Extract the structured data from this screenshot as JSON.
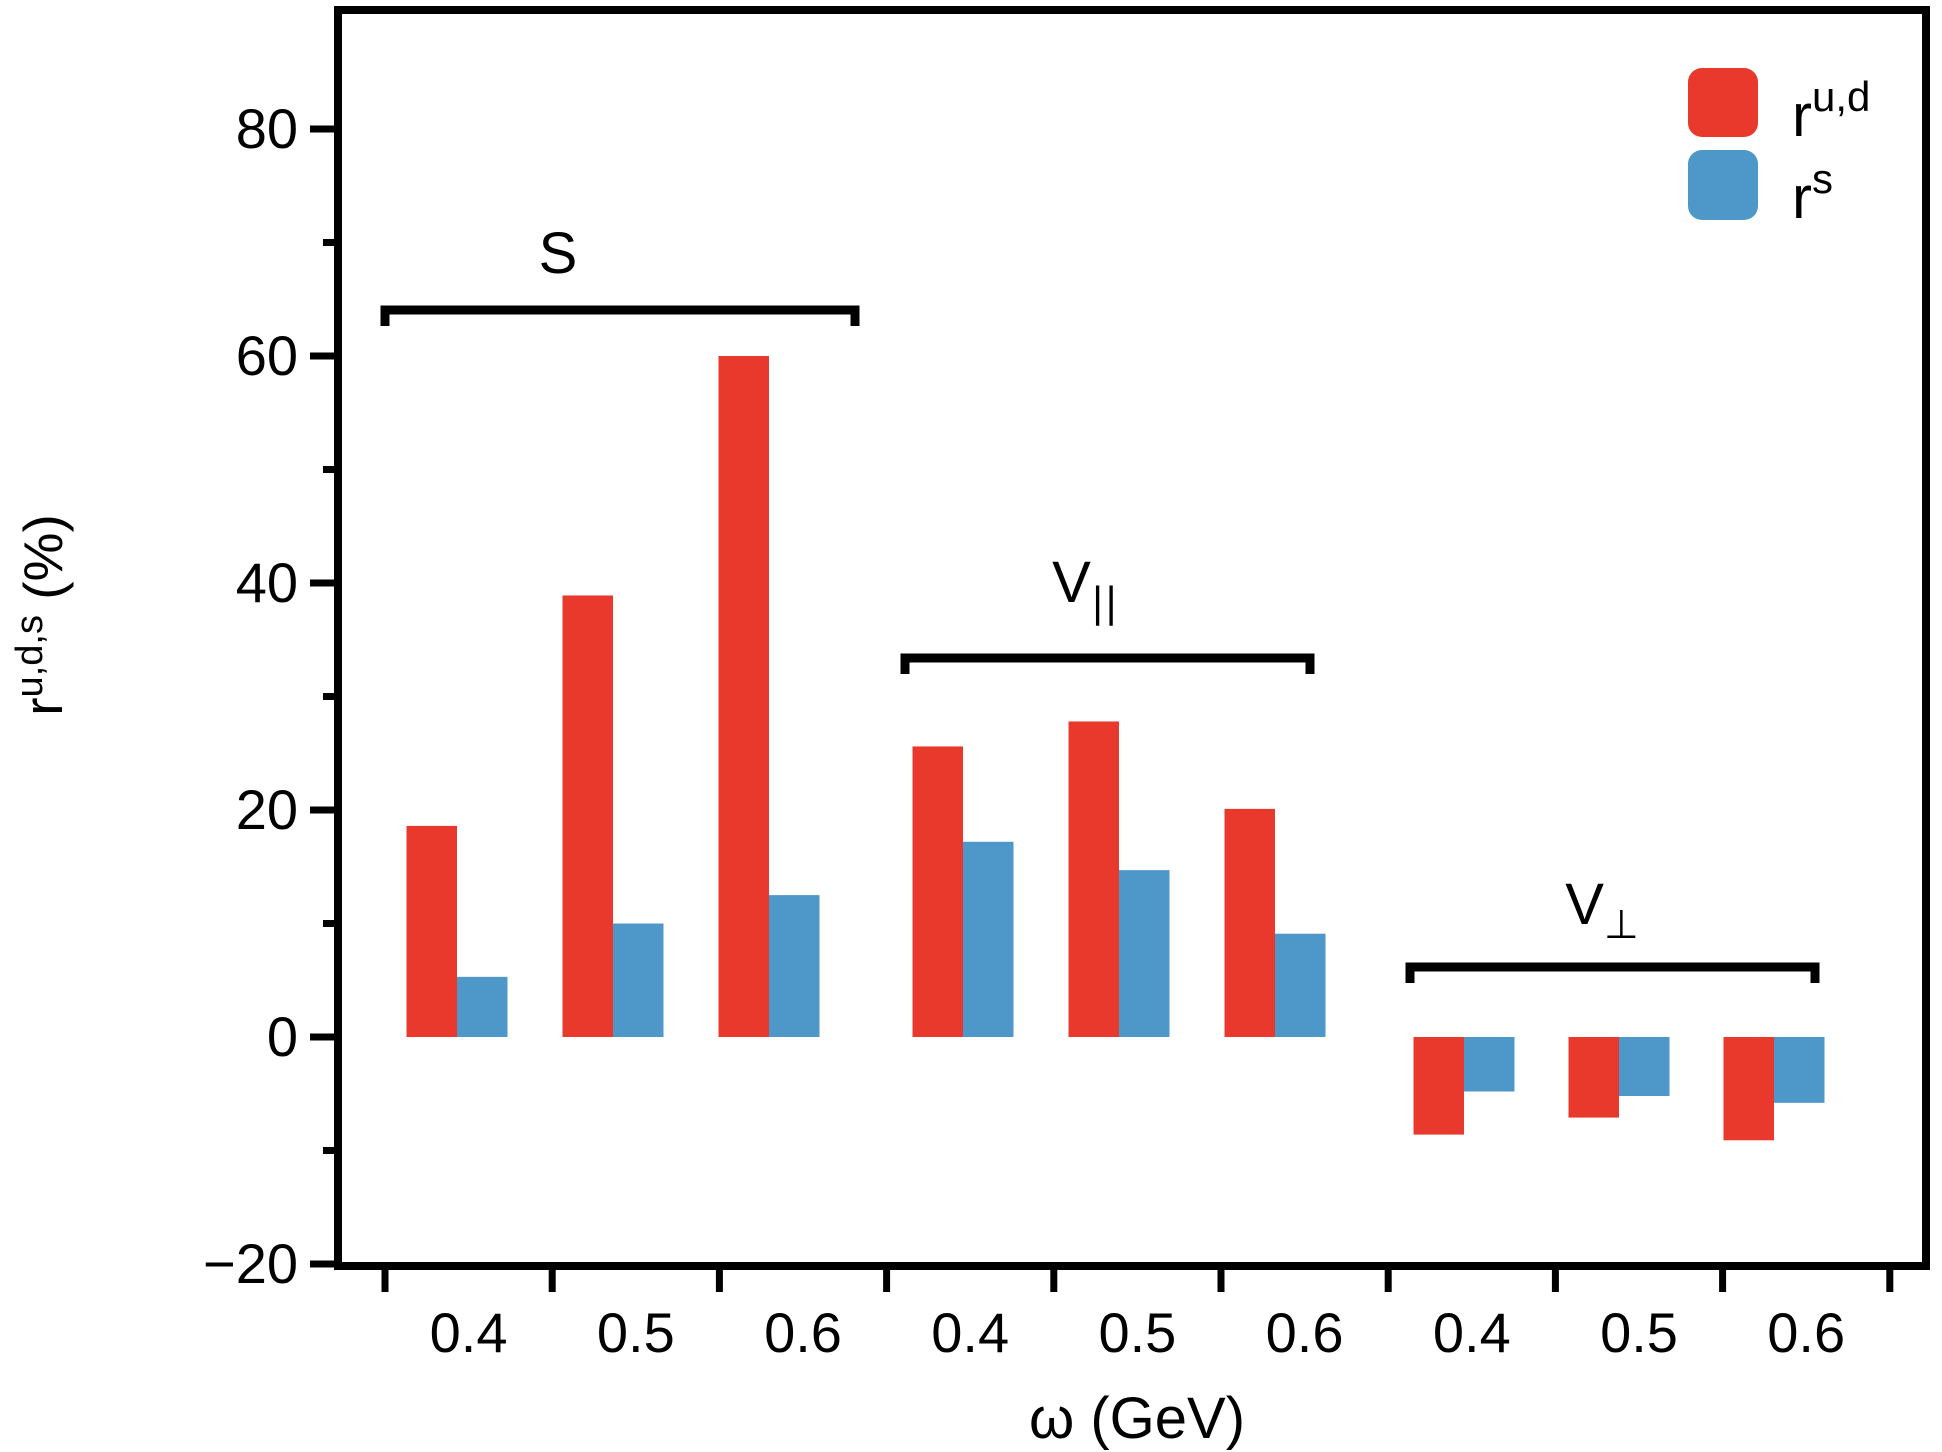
{
  "chart_data": {
    "type": "bar",
    "title": "",
    "xlabel": "ω (GeV)",
    "ylabel": {
      "base": "r",
      "sup": "u,d,s",
      "rest": " (%)"
    },
    "ylim": [
      -20,
      90
    ],
    "grid": "off",
    "legend_position": "top-right",
    "background": "#ffffff",
    "axis_color": "#000000",
    "y_major_ticks": [
      {
        "v": -20,
        "label": "−20"
      },
      {
        "v": 0,
        "label": "0"
      },
      {
        "v": 20,
        "label": "20"
      },
      {
        "v": 40,
        "label": "40"
      },
      {
        "v": 60,
        "label": "60"
      },
      {
        "v": 80,
        "label": "80"
      }
    ],
    "y_minor_ticks": [
      -10,
      10,
      30,
      50,
      70
    ],
    "series_meta": [
      {
        "id": "r_ud",
        "base": "r",
        "sup": "u,d",
        "color": "#e8392c"
      },
      {
        "id": "r_s",
        "base": "r",
        "sup": "s",
        "color": "#4d97c9"
      }
    ],
    "groups": [
      {
        "label": "S",
        "label_sub": "",
        "categories": [
          "0.4",
          "0.5",
          "0.6"
        ],
        "series": [
          {
            "name": "r^u,d",
            "values": [
              18.6,
              38.9,
              60.0
            ]
          },
          {
            "name": "r^s",
            "values": [
              5.3,
              10.0,
              12.5
            ]
          }
        ]
      },
      {
        "label": "V",
        "label_sub": "||",
        "categories": [
          "0.4",
          "0.5",
          "0.6"
        ],
        "series": [
          {
            "name": "r^u,d",
            "values": [
              25.6,
              27.8,
              20.1
            ]
          },
          {
            "name": "r^s",
            "values": [
              17.2,
              14.7,
              9.1
            ]
          }
        ]
      },
      {
        "label": "V",
        "label_sub": "⊥",
        "categories": [
          "0.4",
          "0.5",
          "0.6"
        ],
        "series": [
          {
            "name": "r^u,d",
            "values": [
              -8.6,
              -7.1,
              -9.1
            ]
          },
          {
            "name": "r^s",
            "values": [
              -4.8,
              -5.2,
              -5.8
            ]
          }
        ]
      }
    ]
  }
}
